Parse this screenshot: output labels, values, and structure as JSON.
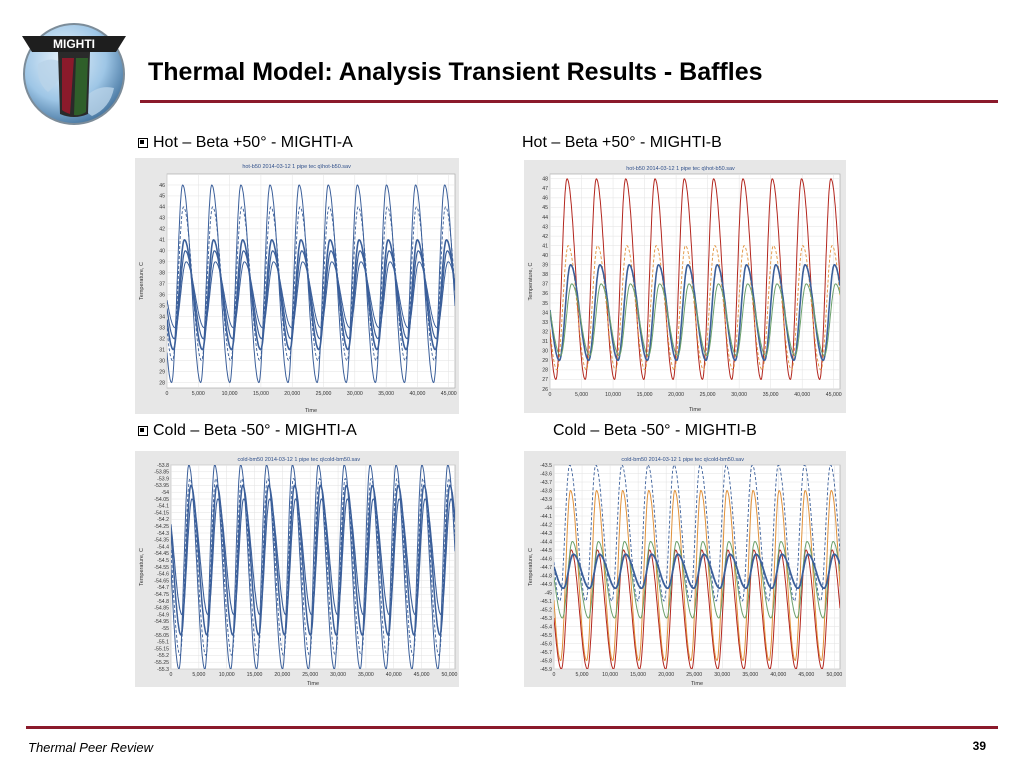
{
  "logo": {
    "text": "MIGHTI"
  },
  "header": {
    "title": "Thermal Model:  Analysis Transient Results - Baffles"
  },
  "captions": {
    "hot_a": "Hot – Beta +50° - MIGHTI-A",
    "hot_b": "Hot – Beta +50° - MIGHTI-B",
    "cold_a": "Cold – Beta -50° - MIGHTI-A",
    "cold_b": "Cold – Beta -50° - MIGHTI-B"
  },
  "footer": {
    "left": "Thermal Peer Review",
    "page": "39"
  },
  "colors": {
    "accent": "#8b1a2b",
    "plot_bg": "#ffffff",
    "panel_bg": "#e7e7e7",
    "blue": "#3b5f9a",
    "red": "#b3261e",
    "orange": "#e0913a",
    "green": "#6aa06a"
  },
  "chart_data": [
    {
      "id": "hot_a",
      "type": "line",
      "title": "hot-b50 2014-03-12 1 pipe tec q\\hot-b50.sav",
      "xlabel": "Time",
      "ylabel": "Temperature, C",
      "xlim": [
        0,
        46000
      ],
      "ylim": [
        27.5,
        47
      ],
      "xticks": [
        0,
        5000,
        10000,
        15000,
        20000,
        25000,
        30000,
        35000,
        40000,
        45000
      ],
      "xtick_labels": [
        "0",
        "5,000",
        "10,000",
        "15,000",
        "20,000",
        "25,000",
        "30,000",
        "35,000",
        "40,000",
        "45,000"
      ],
      "yticks": [
        28,
        29,
        30,
        31,
        32,
        33,
        34,
        35,
        36,
        37,
        38,
        39,
        40,
        41,
        42,
        43,
        44,
        45,
        46
      ],
      "ytick_labels": [
        "28",
        "29",
        "30",
        "31",
        "32",
        "33",
        "34",
        "35",
        "36",
        "37",
        "38",
        "39",
        "40",
        "41",
        "42",
        "43",
        "44",
        "45",
        "46"
      ],
      "period": 4650,
      "first_peak_x": 2500,
      "cycles": 10,
      "series": [
        {
          "color": "#3b5f9a",
          "min": 28,
          "max": 46,
          "phase": 0,
          "width": 1,
          "dash": ""
        },
        {
          "color": "#3b5f9a",
          "min": 30,
          "max": 44,
          "phase": 0.03,
          "width": 0.9,
          "dash": "3 2"
        },
        {
          "color": "#3b5f9a",
          "min": 31,
          "max": 41,
          "phase": 0.06,
          "width": 1.6,
          "dash": ""
        },
        {
          "color": "#3b5f9a",
          "min": 32,
          "max": 40,
          "phase": 0.09,
          "width": 1.2,
          "dash": ""
        },
        {
          "color": "#3b5f9a",
          "min": 33,
          "max": 39,
          "phase": 0.12,
          "width": 1,
          "dash": ""
        }
      ]
    },
    {
      "id": "hot_b",
      "type": "line",
      "title": "hot-b50 2014-03-12 1 pipe tec q\\hot-b50.sav",
      "xlabel": "Time",
      "ylabel": "Temperature, C",
      "xlim": [
        0,
        46000
      ],
      "ylim": [
        26,
        48.5
      ],
      "xticks": [
        0,
        5000,
        10000,
        15000,
        20000,
        25000,
        30000,
        35000,
        40000,
        45000
      ],
      "xtick_labels": [
        "0",
        "5,000",
        "10,000",
        "15,000",
        "20,000",
        "25,000",
        "30,000",
        "35,000",
        "40,000",
        "45,000"
      ],
      "yticks": [
        26,
        27,
        28,
        29,
        30,
        31,
        32,
        33,
        34,
        35,
        36,
        37,
        38,
        39,
        40,
        41,
        42,
        43,
        44,
        45,
        46,
        47,
        48
      ],
      "ytick_labels": [
        "26",
        "27",
        "28",
        "29",
        "30",
        "31",
        "32",
        "33",
        "34",
        "35",
        "36",
        "37",
        "38",
        "39",
        "40",
        "41",
        "42",
        "43",
        "44",
        "45",
        "46",
        "47",
        "48"
      ],
      "period": 4650,
      "first_peak_x": 2700,
      "cycles": 10,
      "series": [
        {
          "color": "#b3261e",
          "min": 27,
          "max": 48,
          "phase": 0,
          "width": 1,
          "dash": ""
        },
        {
          "color": "#e0913a",
          "min": 28,
          "max": 41,
          "phase": 0.04,
          "width": 0.9,
          "dash": "3 2"
        },
        {
          "color": "#3b5f9a",
          "min": 29,
          "max": 39,
          "phase": 0.12,
          "width": 1.6,
          "dash": ""
        },
        {
          "color": "#6aa06a",
          "min": 29.5,
          "max": 37,
          "phase": 0.16,
          "width": 1,
          "dash": ""
        }
      ]
    },
    {
      "id": "cold_a",
      "type": "line",
      "title": "cold-bm50 2014-03-12 1 pipe tec q\\cold-bm50.sav",
      "xlabel": "Time",
      "ylabel": "Temperature, C",
      "xlim": [
        0,
        51000
      ],
      "ylim": [
        -55.3,
        -53.8
      ],
      "xticks": [
        0,
        5000,
        10000,
        15000,
        20000,
        25000,
        30000,
        35000,
        40000,
        45000,
        50000
      ],
      "xtick_labels": [
        "0",
        "5,000",
        "10,000",
        "15,000",
        "20,000",
        "25,000",
        "30,000",
        "35,000",
        "40,000",
        "45,000",
        "50,000"
      ],
      "yticks": [
        -55.3,
        -55.25,
        -55.2,
        -55.15,
        -55.1,
        -55.05,
        -55,
        -54.95,
        -54.9,
        -54.85,
        -54.8,
        -54.75,
        -54.7,
        -54.65,
        -54.6,
        -54.55,
        -54.5,
        -54.45,
        -54.4,
        -54.35,
        -54.3,
        -54.25,
        -54.2,
        -54.15,
        -54.1,
        -54.05,
        -54,
        -53.95,
        -53.9,
        -53.85,
        -53.8
      ],
      "ytick_labels": [
        "-55.3",
        "-55.25",
        "-55.2",
        "-55.15",
        "-55.1",
        "-55.05",
        "-55",
        "-54.95",
        "-54.9",
        "-54.85",
        "-54.8",
        "-54.75",
        "-54.7",
        "-54.65",
        "-54.6",
        "-54.55",
        "-54.5",
        "-54.45",
        "-54.4",
        "-54.35",
        "-54.3",
        "-54.25",
        "-54.2",
        "-54.15",
        "-54.1",
        "-54.05",
        "-54",
        "-53.95",
        "-53.9",
        "-53.85",
        "-53.8"
      ],
      "period": 4650,
      "first_peak_x": 3200,
      "cycles": 11,
      "series": [
        {
          "color": "#3b5f9a",
          "min": -55.3,
          "max": -53.8,
          "phase": 0,
          "width": 1,
          "dash": ""
        },
        {
          "color": "#3b5f9a",
          "min": -55.2,
          "max": -53.9,
          "phase": 0.04,
          "width": 0.9,
          "dash": "3 2"
        },
        {
          "color": "#3b5f9a",
          "min": -55.05,
          "max": -53.95,
          "phase": 0.08,
          "width": 1.5,
          "dash": ""
        },
        {
          "color": "#3b5f9a",
          "min": -54.9,
          "max": -54.05,
          "phase": 0.12,
          "width": 1.1,
          "dash": ""
        }
      ]
    },
    {
      "id": "cold_b",
      "type": "line",
      "title": "cold-bm50 2014-03-12 1 pipe tec q\\cold-bm50.sav",
      "xlabel": "Time",
      "ylabel": "Temperature, C",
      "xlim": [
        0,
        51000
      ],
      "ylim": [
        -45.9,
        -43.5
      ],
      "xticks": [
        0,
        5000,
        10000,
        15000,
        20000,
        25000,
        30000,
        35000,
        40000,
        45000,
        50000
      ],
      "xtick_labels": [
        "0",
        "5,000",
        "10,000",
        "15,000",
        "20,000",
        "25,000",
        "30,000",
        "35,000",
        "40,000",
        "45,000",
        "50,000"
      ],
      "yticks": [
        -45.9,
        -45.8,
        -45.7,
        -45.6,
        -45.5,
        -45.4,
        -45.3,
        -45.2,
        -45.1,
        -45,
        -44.9,
        -44.8,
        -44.7,
        -44.6,
        -44.5,
        -44.4,
        -44.3,
        -44.2,
        -44.1,
        -44,
        -43.9,
        -43.8,
        -43.7,
        -43.6,
        -43.5
      ],
      "ytick_labels": [
        "-45.9",
        "-45.8",
        "-45.7",
        "-45.6",
        "-45.5",
        "-45.4",
        "-45.3",
        "-45.2",
        "-45.1",
        "-45",
        "-44.9",
        "-44.8",
        "-44.7",
        "-44.6",
        "-44.5",
        "-44.4",
        "-44.3",
        "-44.2",
        "-44.1",
        "-44",
        "-43.9",
        "-43.8",
        "-43.7",
        "-43.6",
        "-43.5"
      ],
      "period": 4650,
      "first_peak_x": 2800,
      "cycles": 11,
      "series": [
        {
          "color": "#3b5f9a",
          "min": -45.1,
          "max": -43.5,
          "phase": 0,
          "width": 0.9,
          "dash": "3 2"
        },
        {
          "color": "#e0913a",
          "min": -45.8,
          "max": -43.8,
          "phase": 0.03,
          "width": 1,
          "dash": ""
        },
        {
          "color": "#b3261e",
          "min": -45.9,
          "max": -44.5,
          "phase": 0.06,
          "width": 1,
          "dash": ""
        },
        {
          "color": "#6aa06a",
          "min": -45.3,
          "max": -44.4,
          "phase": 0.1,
          "width": 1,
          "dash": ""
        },
        {
          "color": "#3b5f9a",
          "min": -44.95,
          "max": -44.55,
          "phase": 0.14,
          "width": 1.8,
          "dash": ""
        }
      ]
    }
  ]
}
